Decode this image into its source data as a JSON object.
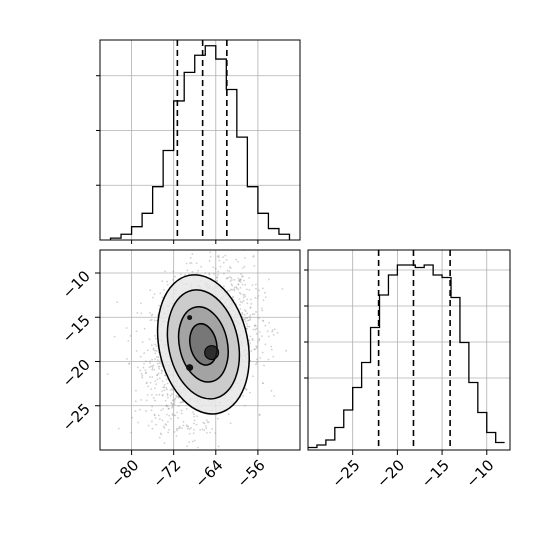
{
  "chart_data": [
    {
      "type": "histogram",
      "panel": "top-left",
      "xlim": [
        -86,
        -48
      ],
      "bin_edges": [
        -84,
        -82,
        -80,
        -78,
        -76,
        -74,
        -72,
        -70,
        -68,
        -66,
        -64,
        -62,
        -60,
        -58,
        -56,
        -54,
        -52,
        -50
      ],
      "counts": [
        1,
        3,
        7,
        14,
        28,
        47,
        73,
        88,
        97,
        102,
        95,
        79,
        54,
        28,
        14,
        6,
        3
      ],
      "quantiles": [
        -71.3,
        -66.5,
        -61.9
      ],
      "ylim": [
        0,
        105
      ],
      "grid": true,
      "yticks_labeled": false
    },
    {
      "type": "histogram",
      "panel": "bottom-right",
      "xlim": [
        -30,
        -7.4
      ],
      "bin_edges": [
        -30,
        -29,
        -28,
        -27,
        -26,
        -25,
        -24,
        -23,
        -22,
        -21,
        -20,
        -19,
        -18,
        -17,
        -16,
        -15,
        -14,
        -13,
        -12,
        -11,
        -10,
        -9,
        -8
      ],
      "counts": [
        1,
        2,
        4,
        9,
        16,
        25,
        35,
        49,
        62,
        70,
        74,
        74,
        73,
        74,
        70,
        69,
        61,
        43,
        27,
        15,
        7,
        3
      ],
      "quantiles": [
        -22.1,
        -18.2,
        -14.1
      ],
      "xticks": [
        -25,
        -20,
        -15,
        -10
      ],
      "ylim": [
        0,
        80
      ],
      "grid": true,
      "yticks_labeled": false
    },
    {
      "type": "scatter",
      "subtype": "2d-density-contour",
      "panel": "bottom-left",
      "xlim": [
        -86,
        -48
      ],
      "ylim": [
        -30,
        -7.4
      ],
      "xticks": [
        -80,
        -72,
        -64,
        -56
      ],
      "yticks": [
        -10,
        -15,
        -20,
        -25
      ],
      "center": [
        -66.5,
        -18.2
      ],
      "spread": [
        4.8,
        4.1
      ],
      "correlation": 0.25,
      "levels": [
        "0.5σ",
        "1σ",
        "1.5σ",
        "2σ"
      ],
      "grid": true
    }
  ],
  "colors": {
    "line": "#000000",
    "grid": "#b0b0b0",
    "points": "#9a9a9a",
    "fill": "#666666"
  }
}
